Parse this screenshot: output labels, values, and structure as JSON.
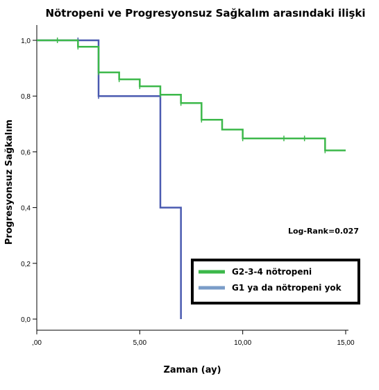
{
  "chart_data": {
    "type": "line",
    "title": "Nötropeni ve Progresyonsuz Sağkalım arasındaki ilişki",
    "xlabel": "Zaman (ay)",
    "ylabel": "Progresyonsuz Sağkalım",
    "xlim": [
      0,
      15
    ],
    "ylim": [
      0,
      1
    ],
    "x_ticks": [
      ",00",
      "5,00",
      "10,00",
      "15,00"
    ],
    "y_ticks": [
      "0,0",
      "0,2",
      "0,4",
      "0,6",
      "0,8",
      "1,0"
    ],
    "annotation": "Log-Rank=0.027",
    "legend_position": "bottom-right",
    "series": [
      {
        "name": "G2-3-4 nötropeni",
        "color": "#3cb84a",
        "steps": [
          [
            0,
            1.0
          ],
          [
            2.0,
            0.977
          ],
          [
            3.0,
            0.885
          ],
          [
            4.0,
            0.86
          ],
          [
            5.0,
            0.835
          ],
          [
            6.0,
            0.805
          ],
          [
            7.0,
            0.775
          ],
          [
            8.0,
            0.715
          ],
          [
            9.0,
            0.68
          ],
          [
            10.0,
            0.648
          ],
          [
            14.0,
            0.605
          ],
          [
            15.0,
            0.605
          ]
        ],
        "censored": [
          [
            1.0,
            1.0
          ],
          [
            2.0,
            0.977
          ],
          [
            3.0,
            0.885
          ],
          [
            4.0,
            0.86
          ],
          [
            5.0,
            0.835
          ],
          [
            6.0,
            0.805
          ],
          [
            7.0,
            0.775
          ],
          [
            8.0,
            0.715
          ],
          [
            10.0,
            0.648
          ],
          [
            12.0,
            0.648
          ],
          [
            13.0,
            0.648
          ],
          [
            14.0,
            0.605
          ]
        ]
      },
      {
        "name": "G1 ya da nötropeni yok",
        "color": "#4a5ab0",
        "legend_color": "#7a9cc8",
        "steps": [
          [
            0,
            1.0
          ],
          [
            3.0,
            0.8
          ],
          [
            6.0,
            0.4
          ],
          [
            7.0,
            0.0
          ]
        ],
        "censored": [
          [
            2.0,
            1.0
          ],
          [
            3.0,
            0.8
          ]
        ]
      }
    ]
  }
}
